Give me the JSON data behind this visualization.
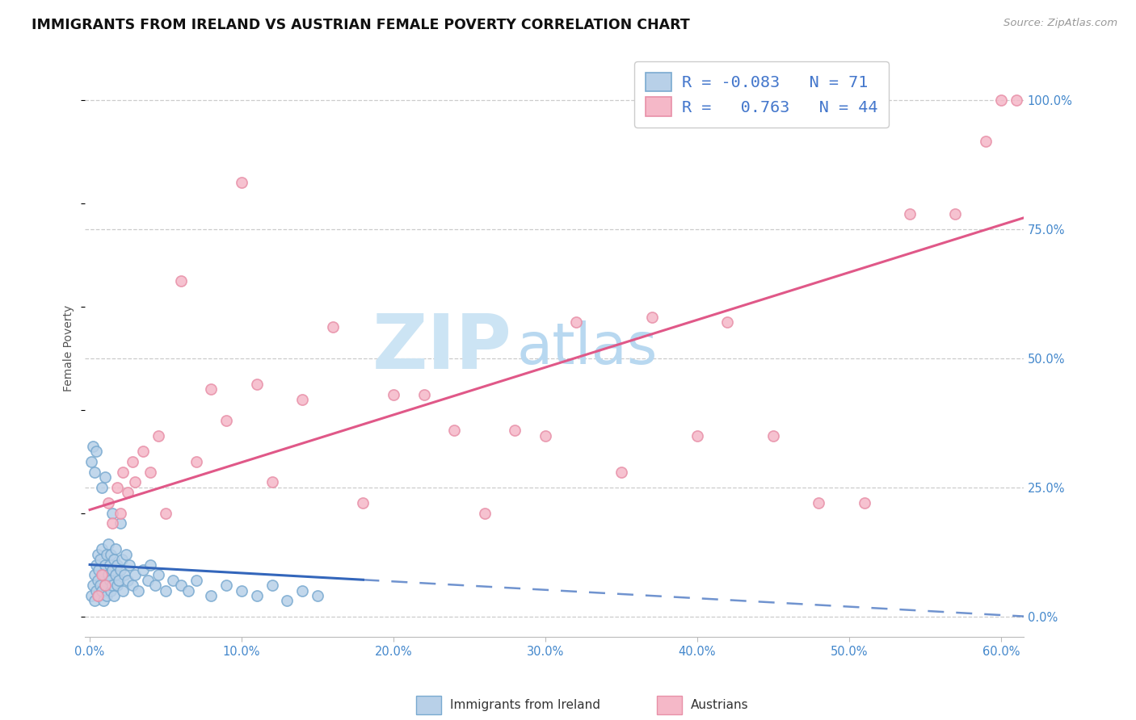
{
  "title": "IMMIGRANTS FROM IRELAND VS AUSTRIAN FEMALE POVERTY CORRELATION CHART",
  "source": "Source: ZipAtlas.com",
  "ylabel": "Female Poverty",
  "x_ticks": [
    "0.0%",
    "10.0%",
    "20.0%",
    "30.0%",
    "40.0%",
    "50.0%",
    "60.0%"
  ],
  "x_tick_vals": [
    0.0,
    0.1,
    0.2,
    0.3,
    0.4,
    0.5,
    0.6
  ],
  "y_ticks_right": [
    "0.0%",
    "25.0%",
    "50.0%",
    "75.0%",
    "100.0%"
  ],
  "y_tick_vals": [
    0.0,
    0.25,
    0.5,
    0.75,
    1.0
  ],
  "xlim": [
    -0.003,
    0.615
  ],
  "ylim": [
    -0.04,
    1.08
  ],
  "R_ireland": -0.083,
  "N_ireland": 71,
  "R_austria": 0.763,
  "N_austria": 44,
  "ireland_fill": "#b8d0e8",
  "ireland_edge": "#7aaad0",
  "austria_fill": "#f5b8c8",
  "austria_edge": "#e890a8",
  "ireland_trend_color": "#3366bb",
  "austria_trend_color": "#e05888",
  "grid_color": "#cccccc",
  "title_color": "#111111",
  "tick_color": "#4488cc",
  "ylabel_color": "#555555",
  "watermark_zip_color": "#cce4f4",
  "watermark_atlas_color": "#b8d8f0",
  "legend_text_color": "#4477cc",
  "legend_r_neg_color": "#cc4444",
  "legend_border_color": "#cccccc",
  "bottom_legend_color": "#333333",
  "ireland_x": [
    0.001,
    0.002,
    0.003,
    0.003,
    0.004,
    0.004,
    0.005,
    0.005,
    0.006,
    0.006,
    0.007,
    0.007,
    0.008,
    0.008,
    0.009,
    0.009,
    0.01,
    0.01,
    0.011,
    0.011,
    0.012,
    0.012,
    0.013,
    0.013,
    0.014,
    0.014,
    0.015,
    0.015,
    0.016,
    0.016,
    0.017,
    0.017,
    0.018,
    0.018,
    0.019,
    0.02,
    0.021,
    0.022,
    0.023,
    0.024,
    0.025,
    0.026,
    0.028,
    0.03,
    0.032,
    0.035,
    0.038,
    0.04,
    0.043,
    0.045,
    0.05,
    0.055,
    0.06,
    0.065,
    0.07,
    0.08,
    0.09,
    0.1,
    0.11,
    0.12,
    0.13,
    0.14,
    0.15,
    0.001,
    0.002,
    0.003,
    0.004,
    0.008,
    0.01,
    0.015,
    0.02
  ],
  "ireland_y": [
    0.04,
    0.06,
    0.03,
    0.08,
    0.05,
    0.1,
    0.07,
    0.12,
    0.04,
    0.09,
    0.06,
    0.11,
    0.05,
    0.13,
    0.08,
    0.03,
    0.1,
    0.06,
    0.12,
    0.04,
    0.08,
    0.14,
    0.07,
    0.1,
    0.05,
    0.12,
    0.09,
    0.06,
    0.11,
    0.04,
    0.08,
    0.13,
    0.06,
    0.1,
    0.07,
    0.09,
    0.11,
    0.05,
    0.08,
    0.12,
    0.07,
    0.1,
    0.06,
    0.08,
    0.05,
    0.09,
    0.07,
    0.1,
    0.06,
    0.08,
    0.05,
    0.07,
    0.06,
    0.05,
    0.07,
    0.04,
    0.06,
    0.05,
    0.04,
    0.06,
    0.03,
    0.05,
    0.04,
    0.3,
    0.33,
    0.28,
    0.32,
    0.25,
    0.27,
    0.2,
    0.18
  ],
  "austria_x": [
    0.005,
    0.008,
    0.01,
    0.012,
    0.015,
    0.018,
    0.02,
    0.022,
    0.025,
    0.028,
    0.03,
    0.035,
    0.04,
    0.045,
    0.05,
    0.06,
    0.07,
    0.08,
    0.09,
    0.1,
    0.11,
    0.12,
    0.14,
    0.16,
    0.18,
    0.2,
    0.22,
    0.24,
    0.26,
    0.28,
    0.3,
    0.32,
    0.35,
    0.37,
    0.4,
    0.42,
    0.45,
    0.48,
    0.51,
    0.54,
    0.57,
    0.59,
    0.6,
    0.61
  ],
  "austria_y": [
    0.04,
    0.08,
    0.06,
    0.22,
    0.18,
    0.25,
    0.2,
    0.28,
    0.24,
    0.3,
    0.26,
    0.32,
    0.28,
    0.35,
    0.2,
    0.65,
    0.3,
    0.44,
    0.38,
    0.84,
    0.45,
    0.26,
    0.42,
    0.56,
    0.22,
    0.43,
    0.43,
    0.36,
    0.2,
    0.36,
    0.35,
    0.57,
    0.28,
    0.58,
    0.35,
    0.57,
    0.35,
    0.22,
    0.22,
    0.78,
    0.78,
    0.92,
    1.0,
    1.0
  ],
  "title_fontsize": 12.5,
  "tick_fontsize": 10.5,
  "legend_fontsize": 14.5,
  "source_fontsize": 9.5,
  "ylabel_fontsize": 10,
  "marker_size": 90
}
